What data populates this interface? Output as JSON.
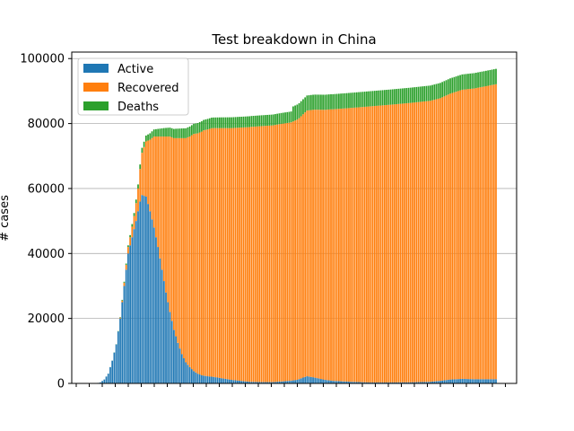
{
  "chart_data": {
    "type": "bar",
    "stacked": true,
    "title": "Test breakdown in China",
    "xlabel": "",
    "ylabel": "# cases",
    "ylim": [
      0,
      102000
    ],
    "yticks": [
      0,
      20000,
      40000,
      60000,
      80000,
      100000
    ],
    "ytick_labels": [
      "0",
      "20000",
      "40000",
      "60000",
      "80000",
      "100000"
    ],
    "grid": "horizontal",
    "legend_position": "top-left",
    "series": [
      {
        "name": "Active",
        "color": "#1f77b4",
        "anchors": [
          [
            0,
            0
          ],
          [
            2,
            30
          ],
          [
            4,
            300
          ],
          [
            6,
            1200
          ],
          [
            8,
            3000
          ],
          [
            10,
            7000
          ],
          [
            12,
            12000
          ],
          [
            14,
            20000
          ],
          [
            16,
            30000
          ],
          [
            18,
            40000
          ],
          [
            20,
            45000
          ],
          [
            22,
            50000
          ],
          [
            24,
            56000
          ],
          [
            25,
            58000
          ],
          [
            27,
            57500
          ],
          [
            29,
            53000
          ],
          [
            31,
            48000
          ],
          [
            33,
            42000
          ],
          [
            35,
            35000
          ],
          [
            37,
            28000
          ],
          [
            39,
            22000
          ],
          [
            41,
            16500
          ],
          [
            43,
            12500
          ],
          [
            45,
            9000
          ],
          [
            47,
            6500
          ],
          [
            49,
            5000
          ],
          [
            51,
            3800
          ],
          [
            53,
            3000
          ],
          [
            55,
            2500
          ],
          [
            58,
            2200
          ],
          [
            61,
            2000
          ],
          [
            64,
            1700
          ],
          [
            67,
            1400
          ],
          [
            70,
            1100
          ],
          [
            73,
            900
          ],
          [
            76,
            700
          ],
          [
            79,
            500
          ],
          [
            85,
            400
          ],
          [
            91,
            400
          ],
          [
            95,
            600
          ],
          [
            99,
            800
          ],
          [
            103,
            1100
          ],
          [
            106,
            1800
          ],
          [
            108,
            2200
          ],
          [
            111,
            1900
          ],
          [
            114,
            1500
          ],
          [
            117,
            1100
          ],
          [
            121,
            800
          ],
          [
            130,
            500
          ],
          [
            140,
            300
          ],
          [
            150,
            300
          ],
          [
            160,
            350
          ],
          [
            170,
            500
          ],
          [
            175,
            800
          ],
          [
            180,
            1200
          ],
          [
            186,
            1400
          ],
          [
            192,
            1300
          ],
          [
            198,
            1300
          ],
          [
            203,
            1300
          ]
        ]
      },
      {
        "name": "Recovered",
        "color": "#ff7f0e",
        "anchors": [
          [
            0,
            0
          ],
          [
            13,
            0
          ],
          [
            15,
            500
          ],
          [
            17,
            1500
          ],
          [
            19,
            2500
          ],
          [
            21,
            4000
          ],
          [
            23,
            7000
          ],
          [
            24,
            10000
          ],
          [
            25,
            13000
          ],
          [
            27,
            17000
          ],
          [
            29,
            22000
          ],
          [
            31,
            28000
          ],
          [
            33,
            34000
          ],
          [
            35,
            41000
          ],
          [
            37,
            48000
          ],
          [
            39,
            54000
          ],
          [
            41,
            59000
          ],
          [
            43,
            63000
          ],
          [
            45,
            66500
          ],
          [
            47,
            69000
          ],
          [
            49,
            71000
          ],
          [
            51,
            73000
          ],
          [
            53,
            74000
          ],
          [
            56,
            75500
          ],
          [
            60,
            76500
          ],
          [
            65,
            77000
          ],
          [
            70,
            77500
          ],
          [
            75,
            78000
          ],
          [
            80,
            78500
          ],
          [
            85,
            78800
          ],
          [
            90,
            79000
          ],
          [
            95,
            79300
          ],
          [
            100,
            79500
          ],
          [
            104,
            80300
          ],
          [
            108,
            81800
          ],
          [
            112,
            82500
          ],
          [
            116,
            83000
          ],
          [
            120,
            83500
          ],
          [
            130,
            84300
          ],
          [
            140,
            85000
          ],
          [
            150,
            85500
          ],
          [
            160,
            86000
          ],
          [
            170,
            86500
          ],
          [
            175,
            87000
          ],
          [
            180,
            88000
          ],
          [
            186,
            89000
          ],
          [
            192,
            89500
          ],
          [
            198,
            90200
          ],
          [
            203,
            90800
          ]
        ]
      },
      {
        "name": "Deaths",
        "color": "#2ca02c",
        "anchors": [
          [
            0,
            0
          ],
          [
            10,
            20
          ],
          [
            12,
            60
          ],
          [
            14,
            150
          ],
          [
            16,
            300
          ],
          [
            18,
            500
          ],
          [
            20,
            800
          ],
          [
            22,
            1100
          ],
          [
            24,
            1400
          ],
          [
            27,
            1800
          ],
          [
            30,
            2100
          ],
          [
            33,
            2350
          ],
          [
            36,
            2600
          ],
          [
            39,
            2750
          ],
          [
            42,
            2900
          ],
          [
            45,
            3000
          ],
          [
            50,
            3100
          ],
          [
            55,
            3200
          ],
          [
            60,
            3250
          ],
          [
            65,
            3300
          ],
          [
            70,
            3330
          ],
          [
            80,
            3340
          ],
          [
            100,
            3345
          ],
          [
            101,
            4630
          ],
          [
            203,
            4740
          ]
        ]
      }
    ]
  }
}
